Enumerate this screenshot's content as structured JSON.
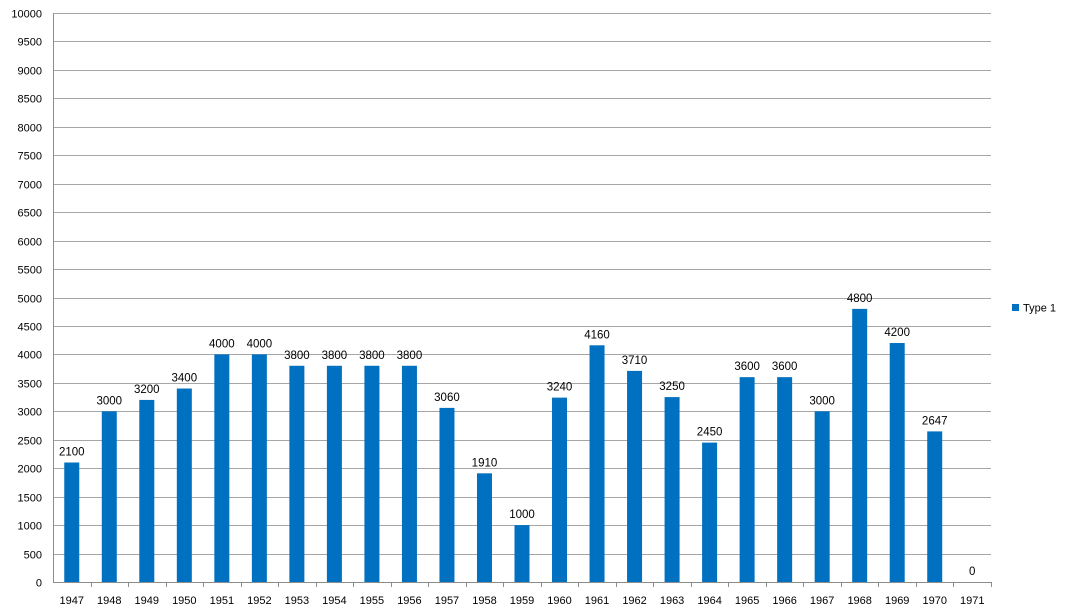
{
  "chart_data": {
    "type": "bar",
    "title": "",
    "xlabel": "",
    "ylabel": "",
    "categories": [
      "1947",
      "1948",
      "1949",
      "1950",
      "1951",
      "1952",
      "1953",
      "1954",
      "1955",
      "1956",
      "1957",
      "1958",
      "1959",
      "1960",
      "1961",
      "1962",
      "1963",
      "1964",
      "1965",
      "1966",
      "1967",
      "1968",
      "1969",
      "1970",
      "1971"
    ],
    "series": [
      {
        "name": "Type 1",
        "color": "#0070C0",
        "values": [
          2100,
          3000,
          3200,
          3400,
          4000,
          4000,
          3800,
          3800,
          3800,
          3800,
          3060,
          1910,
          1000,
          3240,
          4160,
          3710,
          3250,
          2450,
          3600,
          3600,
          3000,
          4800,
          4200,
          2647,
          0
        ]
      }
    ],
    "ylim": [
      0,
      10000
    ],
    "ytick_step": 500,
    "grid": true,
    "data_labels": true,
    "legend_position": "right"
  }
}
